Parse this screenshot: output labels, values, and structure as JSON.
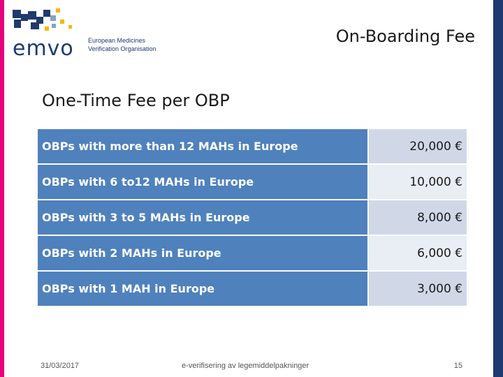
{
  "header": {
    "logo_text": "emvo",
    "logo_sub_line1": "European Medicines",
    "logo_sub_line2": "Verification Organisation",
    "title": "On-Boarding Fee"
  },
  "section_heading": "One-Time Fee per OBP",
  "fee_rows": [
    {
      "label": "OBPs with more than 12 MAHs in Europe",
      "amount": "20,000 €"
    },
    {
      "label": "OBPs with 6 to12 MAHs in Europe",
      "amount": "10,000 €"
    },
    {
      "label": "OBPs with 3 to 5 MAHs in Europe",
      "amount": "8,000 €"
    },
    {
      "label": "OBPs with 2 MAHs in Europe",
      "amount": "6,000 €"
    },
    {
      "label": "OBPs with 1 MAH in Europe",
      "amount": "3,000 €"
    }
  ],
  "footer": {
    "date": "31/03/2017",
    "center": "e-verifisering av legemiddelpakninger",
    "page": "15"
  },
  "colors": {
    "row_label_bg": "#4f81bd",
    "row_amount_bg_light": "#d0d8e8",
    "row_amount_bg_lighter": "#e9edf4",
    "accent_left": "#e6007e",
    "accent_right": "#1f3a6e"
  }
}
